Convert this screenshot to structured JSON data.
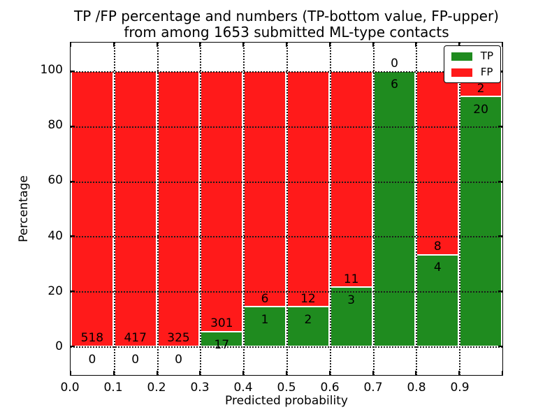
{
  "title": {
    "line1": "TP /FP percentage and numbers (TP-bottom value, FP-upper)",
    "line2": "from among 1653 submitted ML-type contacts"
  },
  "axes": {
    "xlabel": "Predicted probability",
    "ylabel": "Percentage"
  },
  "legend": {
    "position": "upper right",
    "items": [
      {
        "label": "TP",
        "color": "#1f8b1f"
      },
      {
        "label": "FP",
        "color": "#ff1a1a"
      }
    ]
  },
  "chart_data": {
    "type": "bar",
    "stacked": true,
    "orientation": "vertical",
    "title": "TP /FP percentage and numbers (TP-bottom value, FP-upper) from among 1653 submitted ML-type contacts",
    "xlabel": "Predicted probability",
    "ylabel": "Percentage",
    "total_contacts": 1653,
    "bins": [
      "0.0-0.1",
      "0.1-0.2",
      "0.2-0.3",
      "0.3-0.4",
      "0.4-0.5",
      "0.5-0.6",
      "0.6-0.7",
      "0.7-0.8",
      "0.8-0.9",
      "0.9-1.0"
    ],
    "series": [
      {
        "name": "TP",
        "color": "#1f8b1f",
        "counts": [
          0,
          0,
          0,
          17,
          1,
          2,
          3,
          6,
          4,
          20
        ],
        "percent": [
          0,
          0,
          0,
          5.35,
          14.29,
          14.29,
          21.43,
          100,
          33.33,
          90.91
        ]
      },
      {
        "name": "FP",
        "color": "#ff1a1a",
        "counts": [
          518,
          417,
          325,
          301,
          6,
          12,
          11,
          0,
          8,
          2
        ],
        "percent": [
          100,
          100,
          100,
          94.65,
          85.71,
          85.71,
          78.57,
          0,
          66.67,
          9.09
        ]
      }
    ],
    "xticks": [
      "0.0",
      "0.1",
      "0.2",
      "0.3",
      "0.4",
      "0.5",
      "0.6",
      "0.7",
      "0.8",
      "0.9"
    ],
    "yticks": [
      0,
      20,
      40,
      60,
      80,
      100
    ],
    "ylim": [
      -10.5,
      110.5
    ],
    "xlim": [
      0.0,
      1.0
    ],
    "grid": "dotted",
    "legend_position": "upper right"
  }
}
